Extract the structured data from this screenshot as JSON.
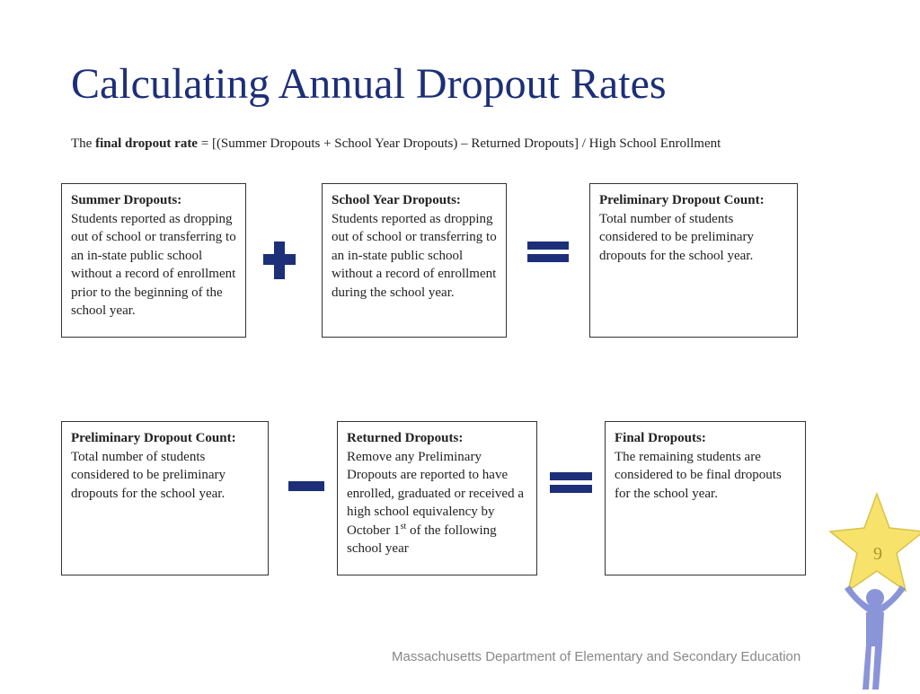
{
  "title": "Calculating Annual Dropout Rates",
  "formula": {
    "prefix": "The ",
    "bold": "final dropout rate",
    "rest": " = [(Summer Dropouts + School Year Dropouts) – Returned Dropouts] / High School Enrollment"
  },
  "row1": [
    {
      "head": "Summer Dropouts:",
      "body": "Students reported as dropping out of school or transferring to an in-state public school without a record of enrollment prior to the beginning of the school year."
    },
    {
      "head": "School Year Dropouts:",
      "body": "Students reported as dropping out of school or transferring to an in-state public school without a record of enrollment during the school year."
    },
    {
      "head": "Preliminary Dropout Count:",
      "body": "Total number of students considered to be preliminary dropouts for the school year."
    }
  ],
  "row2": [
    {
      "head": "Preliminary Dropout Count:",
      "body": "Total number of students considered to be preliminary dropouts for the school year."
    },
    {
      "head": "Returned Dropouts:",
      "body_before": "Remove any Preliminary Dropouts are reported to have enrolled, graduated or received a high school equivalency by October 1",
      "sup": "st",
      "body_after": " of the following school year"
    },
    {
      "head": "Final Dropouts:",
      "body": "The remaining students are considered to be final dropouts for the school year."
    }
  ],
  "footer": "Massachusetts Department of Elementary and Secondary Education",
  "page_number": "9",
  "colors": {
    "title": "#1c2f78",
    "operator": "#1c2f78",
    "star": "#f7e26b",
    "figure": "#8a94d8"
  },
  "icons": {
    "plus": "plus-icon",
    "minus": "minus-icon",
    "equals": "equals-icon",
    "star": "star-figure-icon"
  }
}
